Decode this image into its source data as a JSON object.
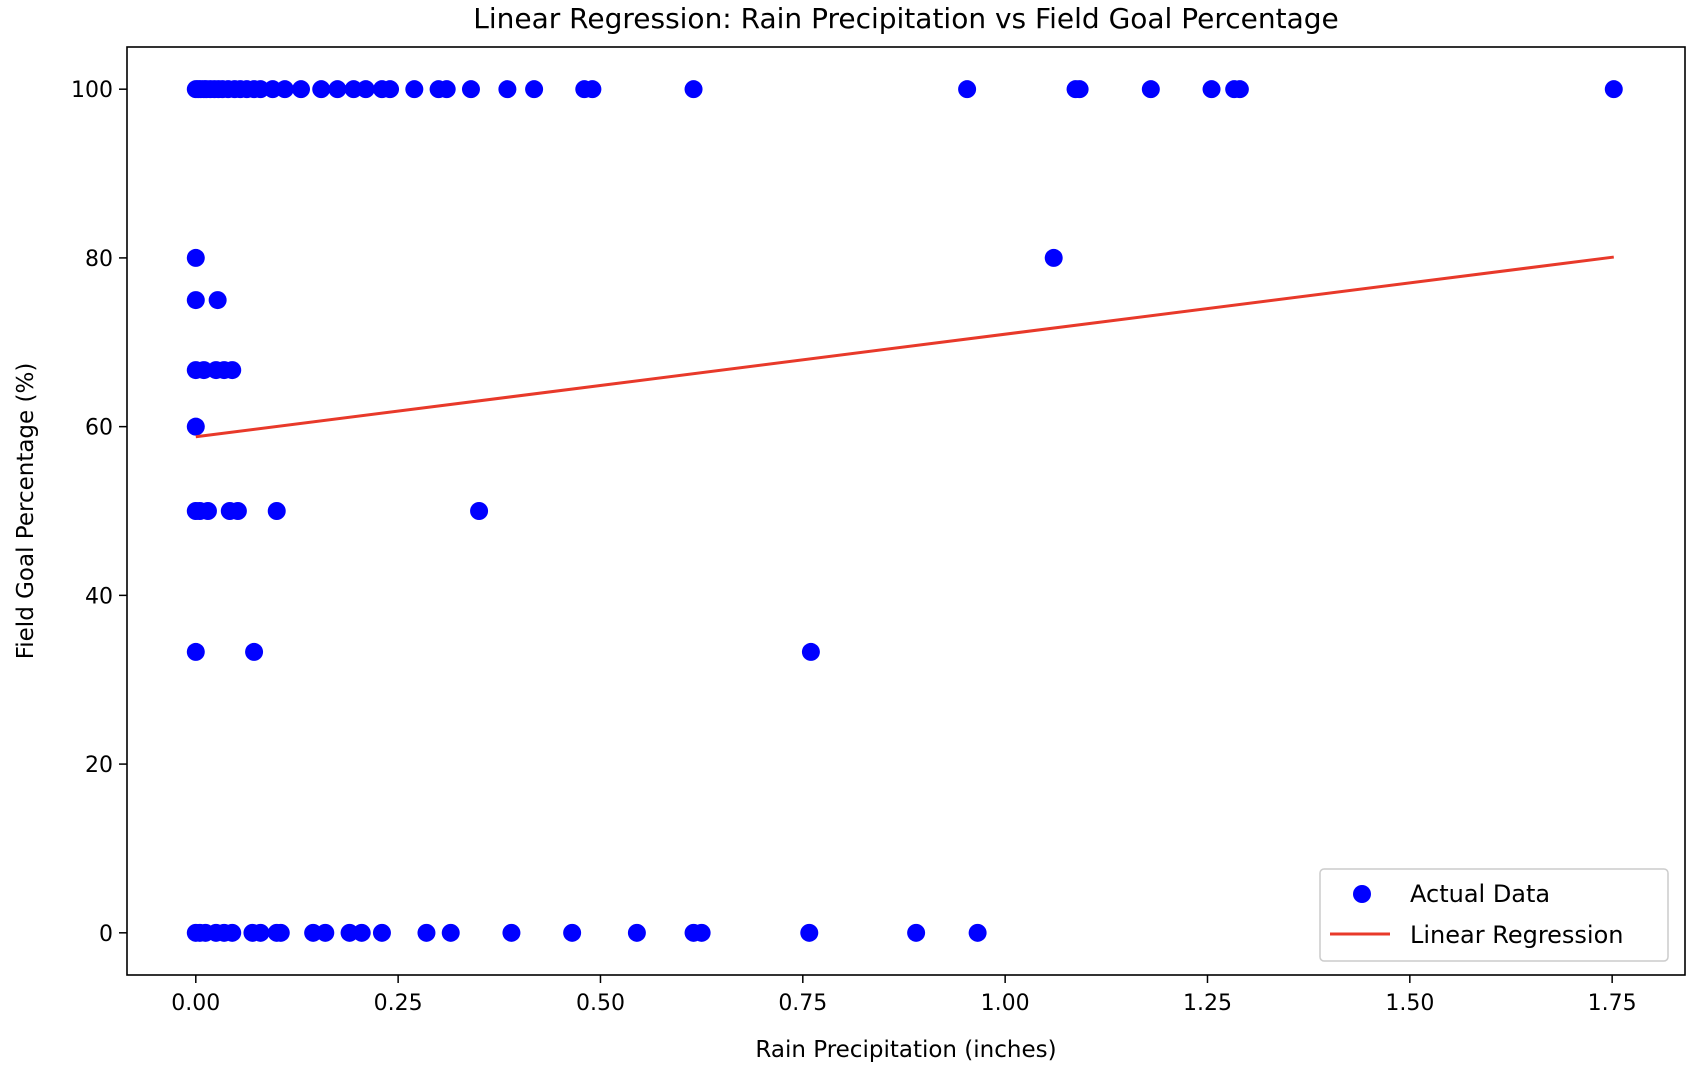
{
  "chart_data": {
    "type": "scatter",
    "title": "Linear Regression: Rain Precipitation vs Field Goal Percentage",
    "xlabel": "Rain Precipitation (inches)",
    "ylabel": "Field Goal Percentage (%)",
    "xlim": [
      -0.085,
      1.84
    ],
    "ylim": [
      -5,
      105
    ],
    "x_ticks": [
      0,
      0.25,
      0.5,
      0.75,
      1.0,
      1.25,
      1.5,
      1.75
    ],
    "x_tick_labels": [
      "0.00",
      "0.25",
      "0.50",
      "0.75",
      "1.00",
      "1.25",
      "1.50",
      "1.75"
    ],
    "y_ticks": [
      0,
      20,
      40,
      60,
      80,
      100
    ],
    "y_tick_labels": [
      "0",
      "20",
      "40",
      "60",
      "80",
      "100"
    ],
    "grid": false,
    "legend_position": "bottom-right",
    "series": [
      {
        "name": "Actual Data",
        "kind": "scatter",
        "color": "#0000ff",
        "points": [
          [
            0.0,
            100
          ],
          [
            0.003,
            100
          ],
          [
            0.006,
            100
          ],
          [
            0.01,
            100
          ],
          [
            0.013,
            100
          ],
          [
            0.018,
            100
          ],
          [
            0.023,
            100
          ],
          [
            0.028,
            100
          ],
          [
            0.033,
            100
          ],
          [
            0.04,
            100
          ],
          [
            0.048,
            100
          ],
          [
            0.055,
            100
          ],
          [
            0.063,
            100
          ],
          [
            0.072,
            100
          ],
          [
            0.08,
            100
          ],
          [
            0.095,
            100
          ],
          [
            0.11,
            100
          ],
          [
            0.13,
            100
          ],
          [
            0.155,
            100
          ],
          [
            0.175,
            100
          ],
          [
            0.195,
            100
          ],
          [
            0.21,
            100
          ],
          [
            0.23,
            100
          ],
          [
            0.24,
            100
          ],
          [
            0.27,
            100
          ],
          [
            0.3,
            100
          ],
          [
            0.31,
            100
          ],
          [
            0.34,
            100
          ],
          [
            0.385,
            100
          ],
          [
            0.418,
            100
          ],
          [
            0.48,
            100
          ],
          [
            0.49,
            100
          ],
          [
            0.615,
            100
          ],
          [
            0.953,
            100
          ],
          [
            1.087,
            100
          ],
          [
            1.092,
            100
          ],
          [
            1.18,
            100
          ],
          [
            1.255,
            100
          ],
          [
            1.283,
            100
          ],
          [
            1.29,
            100
          ],
          [
            1.752,
            100
          ],
          [
            0.0,
            80
          ],
          [
            1.06,
            80
          ],
          [
            0.0,
            75
          ],
          [
            0.027,
            75
          ],
          [
            0.0,
            66.7
          ],
          [
            0.01,
            66.7
          ],
          [
            0.025,
            66.7
          ],
          [
            0.035,
            66.7
          ],
          [
            0.045,
            66.7
          ],
          [
            0.0,
            60
          ],
          [
            0.0,
            50
          ],
          [
            0.005,
            50
          ],
          [
            0.015,
            50
          ],
          [
            0.042,
            50
          ],
          [
            0.052,
            50
          ],
          [
            0.1,
            50
          ],
          [
            0.35,
            50
          ],
          [
            0.0,
            33.3
          ],
          [
            0.072,
            33.3
          ],
          [
            0.76,
            33.3
          ],
          [
            0.0,
            0
          ],
          [
            0.005,
            0
          ],
          [
            0.012,
            0
          ],
          [
            0.025,
            0
          ],
          [
            0.035,
            0
          ],
          [
            0.045,
            0
          ],
          [
            0.07,
            0
          ],
          [
            0.08,
            0
          ],
          [
            0.1,
            0
          ],
          [
            0.105,
            0
          ],
          [
            0.145,
            0
          ],
          [
            0.16,
            0
          ],
          [
            0.19,
            0
          ],
          [
            0.205,
            0
          ],
          [
            0.23,
            0
          ],
          [
            0.285,
            0
          ],
          [
            0.315,
            0
          ],
          [
            0.39,
            0
          ],
          [
            0.465,
            0
          ],
          [
            0.545,
            0
          ],
          [
            0.615,
            0
          ],
          [
            0.625,
            0
          ],
          [
            0.758,
            0
          ],
          [
            0.89,
            0
          ],
          [
            0.966,
            0
          ]
        ]
      },
      {
        "name": "Linear Regression",
        "kind": "line",
        "color": "#e8392a",
        "points": [
          [
            0.0,
            58.8
          ],
          [
            1.752,
            80.1
          ]
        ]
      }
    ]
  }
}
